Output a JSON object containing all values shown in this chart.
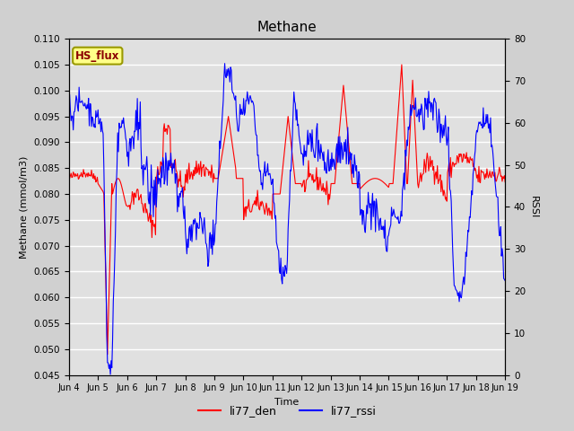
{
  "title": "Methane",
  "ylabel_left": "Methane (mmol/m3)",
  "ylabel_right": "RSSI",
  "xlabel": "Time",
  "ylim_left": [
    0.045,
    0.11
  ],
  "ylim_right": [
    0,
    80
  ],
  "line1_label": "li77_den",
  "line1_color": "red",
  "line2_label": "li77_rssi",
  "line2_color": "blue",
  "hs_flux_label": "HS_flux",
  "bg_color": "#d0d0d0",
  "plot_bg_color": "#e0e0e0",
  "xtick_labels": [
    "Jun 4",
    "Jun 5",
    "Jun 6",
    "Jun 7",
    "Jun 8",
    "Jun 9",
    "Jun 10",
    "Jun 11",
    "Jun 12",
    "Jun 13",
    "Jun 14",
    "Jun 15",
    "Jun 16",
    "Jun 17",
    "Jun 18",
    "Jun 19"
  ],
  "yticks_left": [
    0.045,
    0.05,
    0.055,
    0.06,
    0.065,
    0.07,
    0.075,
    0.08,
    0.085,
    0.09,
    0.095,
    0.1,
    0.105,
    0.11
  ],
  "yticks_right": [
    0,
    10,
    20,
    30,
    40,
    50,
    60,
    70,
    80
  ],
  "n_days": 15,
  "n_pts": 600
}
